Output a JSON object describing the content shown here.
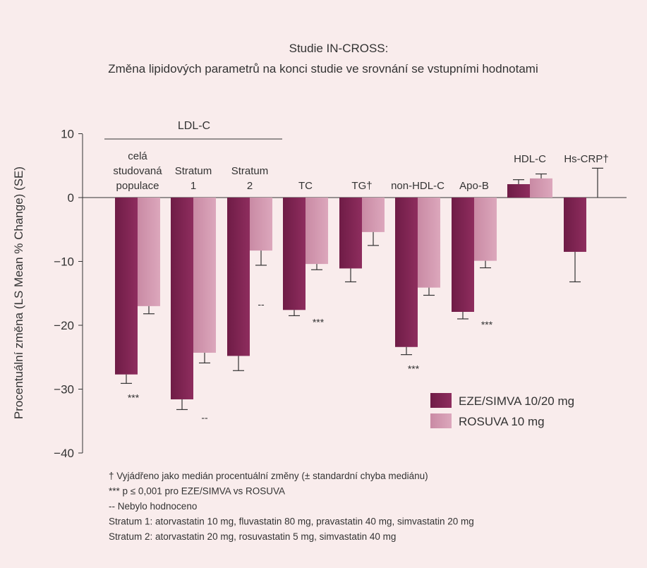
{
  "chart_data": {
    "type": "bar",
    "title": "Studie IN-CROSS:",
    "subtitle": "Změna lipidových parametrů na konci studie ve srovnání se vstupními hodnotami",
    "ylabel": "Procentuální změna (LS Mean % Change) (SE)",
    "ylim": [
      -40,
      10
    ],
    "yticks": [
      10,
      0,
      -10,
      -20,
      -30,
      -40
    ],
    "ytick_labels": [
      "10",
      "0",
      "−10",
      "−20",
      "−30",
      "−40"
    ],
    "group_bracket_label": "LDL-C",
    "categories": [
      [
        "celá",
        "studovaná",
        "populace"
      ],
      [
        "Stratum",
        "1"
      ],
      [
        "Stratum",
        "2"
      ],
      [
        "TC"
      ],
      [
        "TG†"
      ],
      [
        "non-HDL-C"
      ],
      [
        "Apo-B"
      ],
      [
        "HDL-C"
      ],
      [
        "Hs-CRP†"
      ]
    ],
    "series": [
      {
        "name": "EZE/SIMVA 10/20 mg",
        "color": "#8e2d5e",
        "values": [
          -27.7,
          -31.6,
          -24.8,
          -17.6,
          -11.1,
          -23.4,
          -17.9,
          2.1,
          -8.5
        ],
        "err_to": [
          -29.1,
          -33.2,
          -27.1,
          -18.5,
          -13.2,
          -24.6,
          -19.0,
          2.8,
          -13.2
        ]
      },
      {
        "name": "ROSUVA 10 mg",
        "color": "#dca7bc",
        "values": [
          -17.0,
          -24.3,
          -8.3,
          -10.4,
          -5.4,
          -14.1,
          -9.9,
          3.0,
          null
        ],
        "err_to": [
          -18.2,
          -25.9,
          -10.6,
          -11.3,
          -7.5,
          -15.3,
          -11.0,
          3.7,
          4.6
        ]
      }
    ],
    "annotations": [
      "***",
      "--",
      "--",
      "***",
      null,
      "***",
      "***",
      null,
      null
    ],
    "legend_position": "bottom-right",
    "grid": false,
    "footnotes": [
      "† Vyjádřeno jako medián procentuální změny (± standardní chyba mediánu)",
      "*** p ≤ 0,001 pro EZE/SIMVA vs ROSUVA",
      "-- Nebylo hodnoceno",
      "Stratum 1: atorvastatin 10 mg, fluvastatin 80 mg, pravastatin 40 mg, simvastatin 20 mg",
      "Stratum 2: atorvastatin 20 mg, rosuvastatin 5 mg, simvastatin 40 mg"
    ]
  }
}
